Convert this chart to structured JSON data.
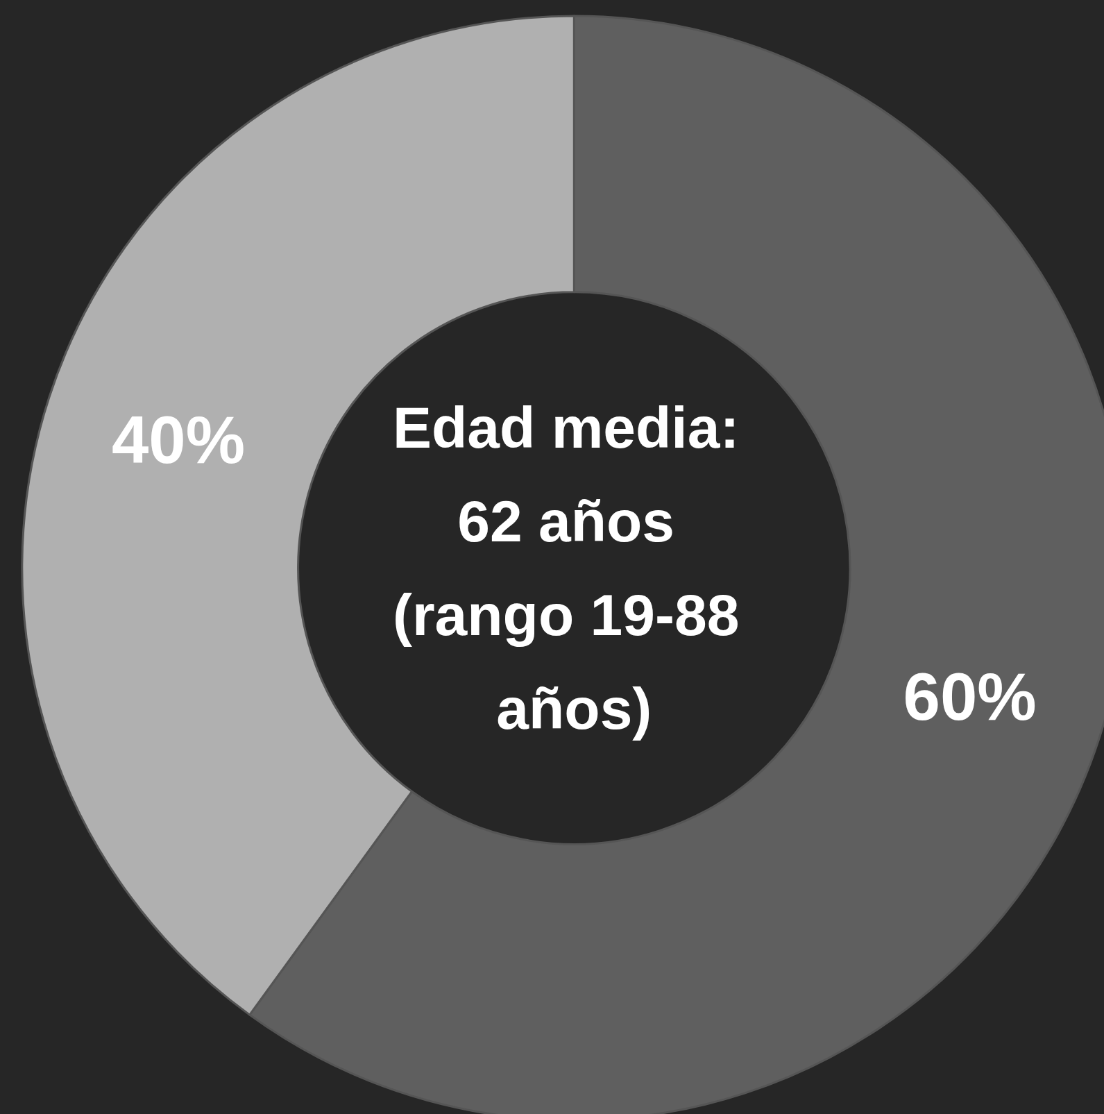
{
  "chart_data": {
    "type": "donut",
    "categories": [
      null,
      null
    ],
    "values": [
      60,
      40
    ],
    "colors": [
      "#5f5f5f",
      "#b0b0b0"
    ],
    "value_labels": [
      "60%",
      "40%"
    ],
    "annotations": [
      "Edad media: 62 años (rango 19-88 años)"
    ]
  }
}
